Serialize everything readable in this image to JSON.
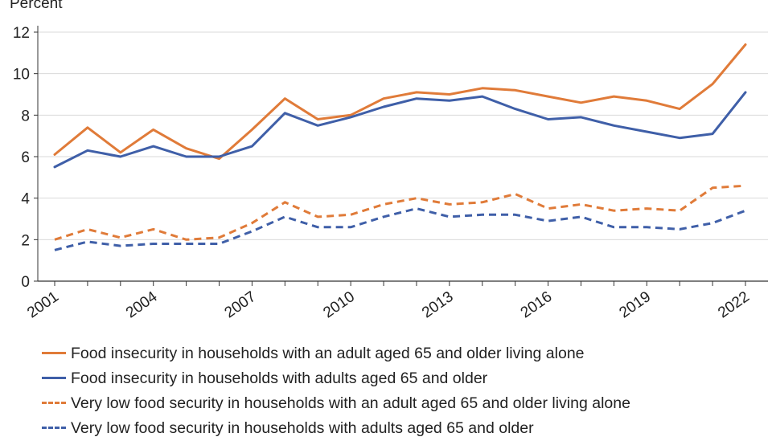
{
  "chart_data": {
    "type": "line",
    "title": "",
    "ylabel": "Percent",
    "xlabel": "",
    "ylim": [
      0,
      12
    ],
    "yticks": [
      0,
      2,
      4,
      6,
      8,
      10,
      12
    ],
    "x": [
      2001,
      2002,
      2003,
      2004,
      2005,
      2006,
      2007,
      2008,
      2009,
      2010,
      2011,
      2012,
      2013,
      2014,
      2015,
      2016,
      2017,
      2018,
      2019,
      2020,
      2021,
      2022
    ],
    "xtick_labels": [
      "2001",
      "2004",
      "2007",
      "2010",
      "2013",
      "2016",
      "2019",
      "2022"
    ],
    "grid": "horizontal",
    "legend_position": "bottom",
    "series": [
      {
        "name": "Food insecurity in households with an adult aged 65 and older living alone",
        "color": "#e07b39",
        "style": "solid",
        "values": [
          6.1,
          7.4,
          6.2,
          7.3,
          6.4,
          5.9,
          7.3,
          8.8,
          7.8,
          8.0,
          8.8,
          9.1,
          9.0,
          9.3,
          9.2,
          8.9,
          8.6,
          8.9,
          8.7,
          8.3,
          9.5,
          11.4
        ]
      },
      {
        "name": "Food insecurity in households with adults aged 65 and older",
        "color": "#3f5fa8",
        "style": "solid",
        "values": [
          5.5,
          6.3,
          6.0,
          6.5,
          6.0,
          6.0,
          6.5,
          8.1,
          7.5,
          7.9,
          8.4,
          8.8,
          8.7,
          8.9,
          8.3,
          7.8,
          7.9,
          7.5,
          7.2,
          6.9,
          7.1,
          9.1
        ]
      },
      {
        "name": "Very low food security in households with an adult aged 65 and older living alone",
        "color": "#e07b39",
        "style": "dashed",
        "values": [
          2.0,
          2.5,
          2.1,
          2.5,
          2.0,
          2.1,
          2.8,
          3.8,
          3.1,
          3.2,
          3.7,
          4.0,
          3.7,
          3.8,
          4.2,
          3.5,
          3.7,
          3.4,
          3.5,
          3.4,
          4.5,
          4.6
        ]
      },
      {
        "name": "Very low food security in households with adults aged 65 and older",
        "color": "#3f5fa8",
        "style": "dashed",
        "values": [
          1.5,
          1.9,
          1.7,
          1.8,
          1.8,
          1.8,
          2.4,
          3.1,
          2.6,
          2.6,
          3.1,
          3.5,
          3.1,
          3.2,
          3.2,
          2.9,
          3.1,
          2.6,
          2.6,
          2.5,
          2.8,
          3.4
        ]
      }
    ]
  }
}
